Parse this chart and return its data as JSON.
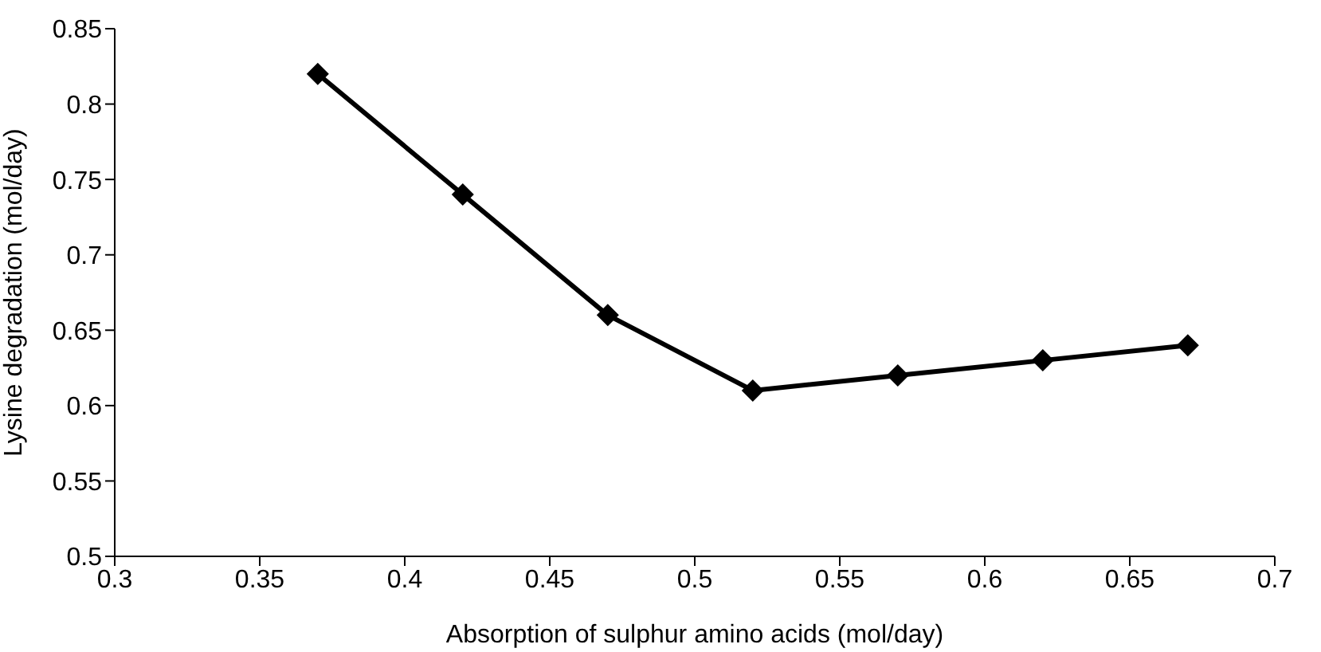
{
  "chart_data": {
    "type": "line",
    "xlabel": "Absorption of sulphur amino acids (mol/day)",
    "ylabel": "Lysine degradation (mol/day)",
    "x": [
      0.37,
      0.42,
      0.47,
      0.52,
      0.57,
      0.62,
      0.67
    ],
    "series": [
      {
        "color": "#000000",
        "values": [
          0.82,
          0.74,
          0.66,
          0.61,
          0.62,
          0.63,
          0.64
        ]
      }
    ],
    "xlim": [
      0.3,
      0.7
    ],
    "xticks": [
      0.3,
      0.35,
      0.4,
      0.45,
      0.5,
      0.55,
      0.6,
      0.65,
      0.7
    ],
    "ylim": [
      0.5,
      0.85
    ],
    "yticks": [
      0.5,
      0.55,
      0.6,
      0.65,
      0.7,
      0.75,
      0.8,
      0.85
    ],
    "grid": false,
    "legend": false,
    "marker": "diamond",
    "line_style": "solid"
  }
}
